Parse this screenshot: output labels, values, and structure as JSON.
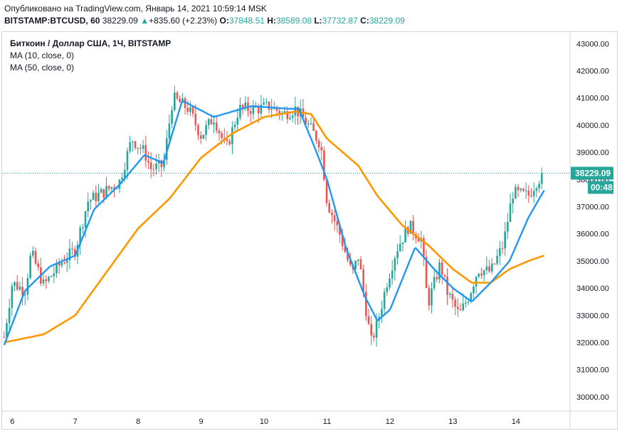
{
  "header": {
    "published": "Опубликовано на TradingView.com, Январь 14, 2021 10:59:14 MSK",
    "symbol": "BITSTAMP:BTCUSD, 60",
    "last": "38229.09",
    "change_arrow": "▲",
    "change": "+835.60 (+2.23%)",
    "o_label": "O:",
    "o": "37848.51",
    "h_label": "H:",
    "h": "38589.08",
    "l_label": "L:",
    "l": "37732.87",
    "c_label": "C:",
    "c": "38229.09"
  },
  "legend": {
    "title": "Биткоин / Доллар США, 1Ч, BITSTAMP",
    "ma10": "MA (10, close, 0)",
    "ma50": "MA (50, close, 0)"
  },
  "colors": {
    "up": "#26a69a",
    "down": "#ef5350",
    "ma10": "#2196f3",
    "ma50": "#ff9800",
    "price_label": "#26a69a",
    "axis_text": "#131722",
    "border": "#d1d4dc"
  },
  "chart_data": {
    "type": "candlestick",
    "ylim": [
      29500,
      43400
    ],
    "yticks": [
      30000,
      31000,
      32000,
      33000,
      34000,
      35000,
      36000,
      37000,
      38000,
      39000,
      40000,
      41000,
      42000,
      43000
    ],
    "ytick_labels": [
      "30000.00",
      "31000.00",
      "32000.00",
      "33000.00",
      "34000.00",
      "35000.00",
      "36000.00",
      "37000.00",
      "38000.00",
      "39000.00",
      "40000.00",
      "41000.00",
      "42000.00",
      "43000.00"
    ],
    "xlim": [
      5.85,
      14.85
    ],
    "xticks": [
      6,
      7,
      8,
      9,
      10,
      11,
      12,
      13,
      14
    ],
    "xtick_labels": [
      "6",
      "7",
      "8",
      "9",
      "10",
      "11",
      "12",
      "13",
      "14"
    ],
    "last_price": 38229.09,
    "last_price_label": "38229.09",
    "countdown": "00:48",
    "close_keypoints": [
      [
        5.87,
        32200
      ],
      [
        6.0,
        34200
      ],
      [
        6.2,
        33900
      ],
      [
        6.3,
        35300
      ],
      [
        6.5,
        34100
      ],
      [
        6.8,
        35000
      ],
      [
        7.0,
        35400
      ],
      [
        7.2,
        37200
      ],
      [
        7.5,
        37600
      ],
      [
        7.7,
        37900
      ],
      [
        7.9,
        39500
      ],
      [
        8.1,
        39000
      ],
      [
        8.2,
        38400
      ],
      [
        8.4,
        38500
      ],
      [
        8.55,
        41000
      ],
      [
        8.8,
        40600
      ],
      [
        9.0,
        39600
      ],
      [
        9.2,
        40300
      ],
      [
        9.4,
        39100
      ],
      [
        9.6,
        40600
      ],
      [
        9.9,
        40600
      ],
      [
        10.1,
        40700
      ],
      [
        10.3,
        40400
      ],
      [
        10.5,
        40600
      ],
      [
        10.7,
        40000
      ],
      [
        10.9,
        39300
      ],
      [
        11.0,
        37200
      ],
      [
        11.2,
        36000
      ],
      [
        11.4,
        34500
      ],
      [
        11.5,
        35200
      ],
      [
        11.6,
        33500
      ],
      [
        11.7,
        32000
      ],
      [
        11.8,
        32700
      ],
      [
        11.95,
        34200
      ],
      [
        12.1,
        35400
      ],
      [
        12.3,
        36300
      ],
      [
        12.5,
        35800
      ],
      [
        12.6,
        33400
      ],
      [
        12.8,
        34900
      ],
      [
        12.9,
        33900
      ],
      [
        13.1,
        33000
      ],
      [
        13.25,
        33700
      ],
      [
        13.4,
        34700
      ],
      [
        13.6,
        34600
      ],
      [
        13.8,
        35600
      ],
      [
        13.95,
        37500
      ],
      [
        14.2,
        37400
      ],
      [
        14.32,
        37900
      ],
      [
        14.45,
        38229.09
      ]
    ],
    "ma10_keypoints": [
      [
        5.87,
        31900
      ],
      [
        6.2,
        33900
      ],
      [
        6.6,
        34800
      ],
      [
        7.0,
        35200
      ],
      [
        7.3,
        36900
      ],
      [
        7.7,
        37800
      ],
      [
        8.1,
        38900
      ],
      [
        8.4,
        38600
      ],
      [
        8.7,
        40900
      ],
      [
        9.2,
        40300
      ],
      [
        9.8,
        40700
      ],
      [
        10.4,
        40600
      ],
      [
        10.55,
        40600
      ],
      [
        10.8,
        39200
      ],
      [
        11.0,
        38000
      ],
      [
        11.3,
        35500
      ],
      [
        11.6,
        33700
      ],
      [
        11.8,
        32800
      ],
      [
        12.0,
        33200
      ],
      [
        12.4,
        35500
      ],
      [
        12.7,
        34700
      ],
      [
        13.0,
        34000
      ],
      [
        13.3,
        33500
      ],
      [
        13.6,
        34200
      ],
      [
        13.9,
        35000
      ],
      [
        14.2,
        36600
      ],
      [
        14.45,
        37600
      ]
    ],
    "ma50_keypoints": [
      [
        5.87,
        32000
      ],
      [
        6.5,
        32300
      ],
      [
        7.0,
        33000
      ],
      [
        7.5,
        34600
      ],
      [
        8.0,
        36200
      ],
      [
        8.5,
        37300
      ],
      [
        9.0,
        38800
      ],
      [
        9.5,
        39700
      ],
      [
        10.0,
        40300
      ],
      [
        10.5,
        40500
      ],
      [
        10.75,
        40400
      ],
      [
        11.0,
        39500
      ],
      [
        11.5,
        38500
      ],
      [
        11.8,
        37400
      ],
      [
        12.2,
        36300
      ],
      [
        12.6,
        35600
      ],
      [
        13.0,
        34700
      ],
      [
        13.3,
        34200
      ],
      [
        13.6,
        34200
      ],
      [
        13.9,
        34700
      ],
      [
        14.2,
        35000
      ],
      [
        14.45,
        35200
      ]
    ]
  }
}
